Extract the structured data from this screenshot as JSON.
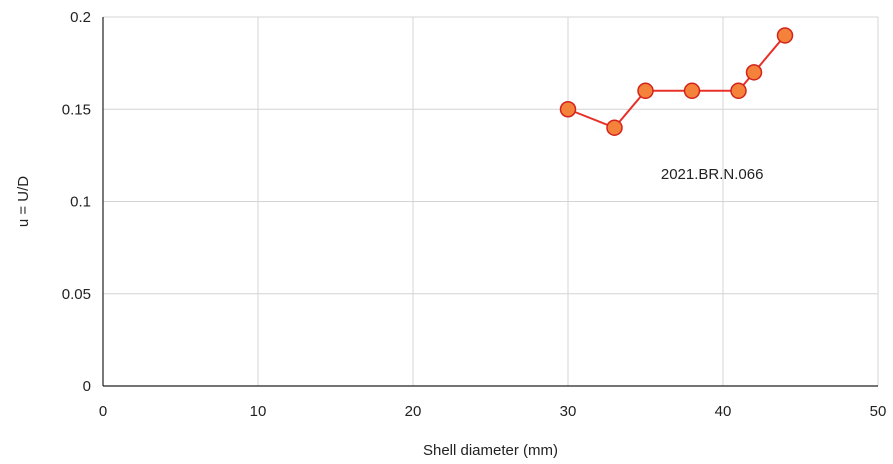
{
  "chart_data": {
    "type": "line",
    "xlabel": "Shell diameter (mm)",
    "ylabel": "u = U/D",
    "xlim": [
      0,
      50
    ],
    "ylim": [
      0,
      0.2
    ],
    "xticks": [
      0,
      10,
      20,
      30,
      40,
      50
    ],
    "yticks": [
      0,
      0.05,
      0.1,
      0.15,
      0.2
    ],
    "xtick_labels": [
      "0",
      "10",
      "20",
      "30",
      "40",
      "50"
    ],
    "ytick_labels": [
      "0",
      "0.05",
      "0.1",
      "0.15",
      "0.2"
    ],
    "grid": true,
    "series": [
      {
        "x": [
          30,
          33,
          35,
          38,
          41,
          42,
          44
        ],
        "y": [
          0.15,
          0.14,
          0.16,
          0.16,
          0.16,
          0.17,
          0.19
        ],
        "line_color": "#e8312a",
        "marker_fill": "#f5823a",
        "marker_edge": "#d2231b"
      }
    ],
    "annotation": {
      "text": "2021.BR.N.066",
      "x": 39.3,
      "y": 0.115
    }
  }
}
